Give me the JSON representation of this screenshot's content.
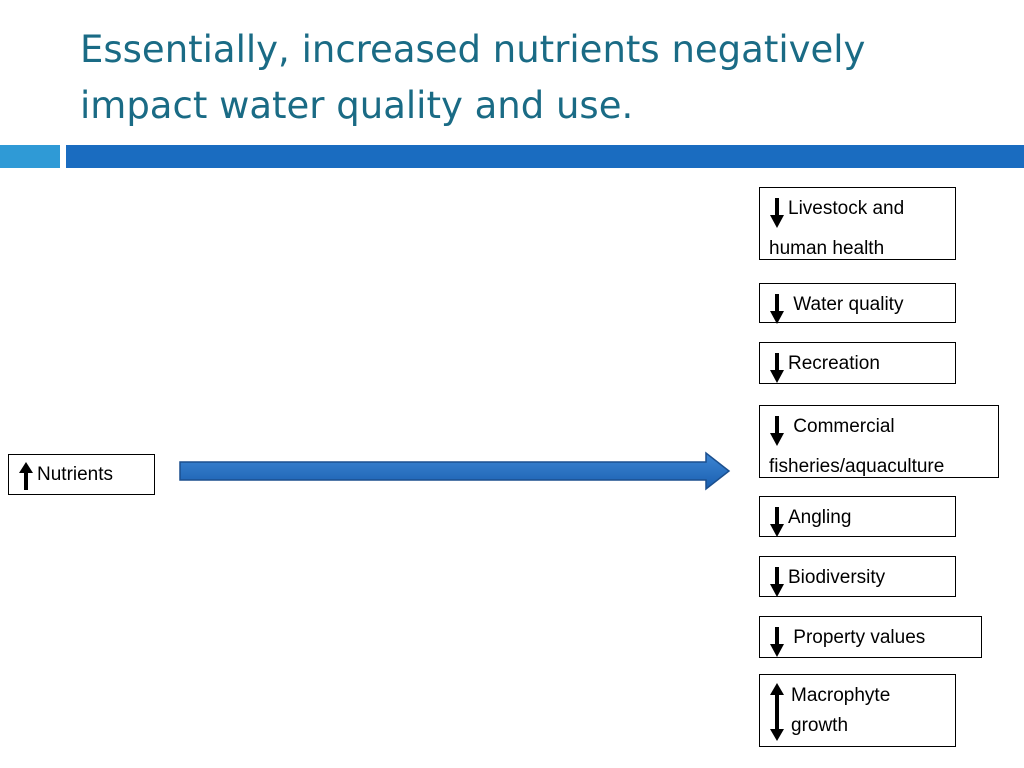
{
  "slide": {
    "title": "Essentially, increased nutrients negatively impact water quality and use."
  },
  "source": {
    "label": "Nutrients",
    "direction": "up",
    "icon": "up-arrow-icon"
  },
  "flow_arrow": {
    "icon": "right-arrow-icon",
    "color": "#1f6bc1"
  },
  "impacts": [
    {
      "label": "Livestock and human health",
      "direction": "down",
      "icon": "down-arrow-icon"
    },
    {
      "label": " Water quality",
      "direction": "down",
      "icon": "down-arrow-icon"
    },
    {
      "label": "Recreation",
      "direction": "down",
      "icon": "down-arrow-icon"
    },
    {
      "label": " Commercial fisheries/aquaculture",
      "direction": "down",
      "icon": "down-arrow-icon"
    },
    {
      "label": "Angling",
      "direction": "down",
      "icon": "down-arrow-icon"
    },
    {
      "label": "Biodiversity",
      "direction": "down",
      "icon": "down-arrow-icon"
    },
    {
      "label": " Property values",
      "direction": "down",
      "icon": "down-arrow-icon"
    },
    {
      "label": "Macrophyte growth",
      "direction": "up-down",
      "icon": "up-down-arrow-icon"
    }
  ],
  "colors": {
    "title": "#1a6b85",
    "bar_light": "#2f9ad6",
    "bar_dark": "#1a6cc0",
    "arrow_fill": "#1f6bc1"
  }
}
